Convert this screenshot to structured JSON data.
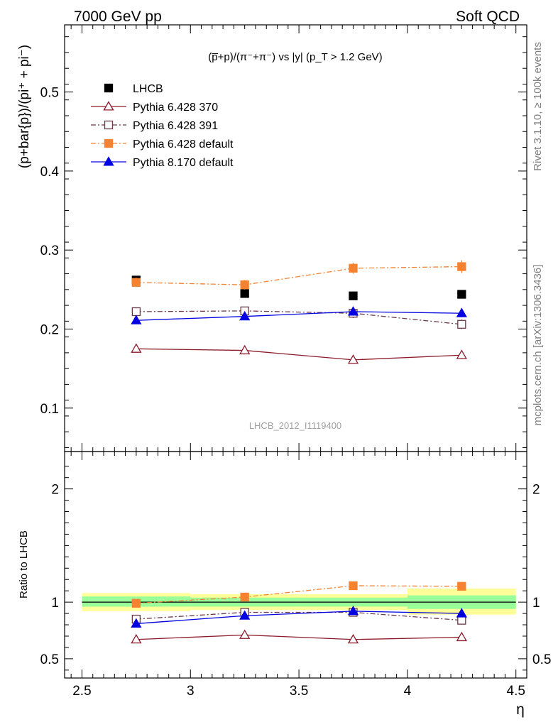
{
  "header": {
    "left": "7000 GeV pp",
    "right": "Soft QCD"
  },
  "side": {
    "top": "Rivet 3.1.10, ≥ 100k events",
    "bottom": "mcplots.cern.ch [arXiv:1306.3436]"
  },
  "chart_data": [
    {
      "type": "scatter",
      "title": "(p̅+p)/(π⁻+π⁻) vs |y| (p_T > 1.2 GeV)",
      "ylabel": "(p+bar{p})/(pi⁺ + pi⁻)",
      "analysis_label": "LHCB_2012_I1119400",
      "xlim": [
        2.42,
        4.55
      ],
      "ylim": [
        0.045,
        0.585
      ],
      "yticks": [
        0.1,
        0.2,
        0.3,
        0.4,
        0.5
      ],
      "ytick_labels": [
        "0.1",
        "0.2",
        "0.3",
        "0.4",
        "0.5"
      ],
      "x": [
        2.75,
        3.25,
        3.75,
        4.25
      ],
      "legend_position": "top-left",
      "series": [
        {
          "name": "LHCB",
          "color": "#000000",
          "marker": "square-filled",
          "line": "none",
          "values": [
            0.262,
            0.245,
            0.242,
            0.244
          ]
        },
        {
          "name": "Pythia 6.428 370",
          "color": "#8b1a2a",
          "marker": "triangle-open",
          "line": "solid",
          "values": [
            0.175,
            0.173,
            0.161,
            0.167
          ],
          "errors": [
            0.003,
            0.003,
            0.003,
            0.005
          ]
        },
        {
          "name": "Pythia 6.428 391",
          "color": "#6b3a4a",
          "marker": "square-open",
          "line": "dashdot",
          "values": [
            0.222,
            0.223,
            0.22,
            0.206
          ],
          "errors": [
            0.003,
            0.004,
            0.006,
            0.006
          ]
        },
        {
          "name": "Pythia 6.428 default",
          "color": "#f58231",
          "marker": "square-filled",
          "line": "dashdot",
          "values": [
            0.259,
            0.256,
            0.277,
            0.279
          ],
          "errors": [
            0.006,
            0.006,
            0.007,
            0.008
          ]
        },
        {
          "name": "Pythia 8.170 default",
          "color": "#0000e0",
          "marker": "triangle-filled",
          "line": "solid",
          "values": [
            0.211,
            0.216,
            0.222,
            0.22
          ],
          "errors": [
            0.003,
            0.003,
            0.005,
            0.005
          ]
        }
      ]
    },
    {
      "type": "scatter",
      "ylabel": "Ratio to LHCB",
      "xlabel": "η",
      "xlim": [
        2.42,
        4.55
      ],
      "ylim": [
        0.33,
        2.33
      ],
      "xticks": [
        2.5,
        3,
        3.5,
        4,
        4.5
      ],
      "xtick_labels": [
        "2.5",
        "3",
        "3.5",
        "4",
        "4.5"
      ],
      "yticks": [
        0.5,
        1,
        2
      ],
      "ytick_labels": [
        "0.5",
        "1",
        "2"
      ],
      "x": [
        2.75,
        3.25,
        3.75,
        4.25
      ],
      "bands": [
        {
          "x0": 2.5,
          "x1": 3.0,
          "yellow": [
            0.92,
            1.08
          ],
          "green": [
            0.96,
            1.05
          ]
        },
        {
          "x0": 3.0,
          "x1": 3.5,
          "yellow": [
            0.93,
            1.07
          ],
          "green": [
            0.96,
            1.04
          ]
        },
        {
          "x0": 3.5,
          "x1": 4.0,
          "yellow": [
            0.93,
            1.07
          ],
          "green": [
            0.96,
            1.04
          ]
        },
        {
          "x0": 4.0,
          "x1": 4.5,
          "yellow": [
            0.89,
            1.12
          ],
          "green": [
            0.94,
            1.06
          ]
        }
      ],
      "series": [
        {
          "name": "Pythia 6.428 370",
          "color": "#8b1a2a",
          "marker": "triangle-open",
          "line": "solid",
          "values": [
            0.67,
            0.71,
            0.67,
            0.69
          ],
          "errors": [
            0.01,
            0.01,
            0.01,
            0.02
          ]
        },
        {
          "name": "Pythia 6.428 391",
          "color": "#6b3a4a",
          "marker": "square-open",
          "line": "dashdot",
          "values": [
            0.85,
            0.91,
            0.91,
            0.84
          ],
          "errors": [
            0.01,
            0.01,
            0.02,
            0.02
          ]
        },
        {
          "name": "Pythia 6.428 default",
          "color": "#f58231",
          "marker": "square-filled",
          "line": "dashdot",
          "values": [
            0.99,
            1.045,
            1.145,
            1.14
          ],
          "errors": [
            0.02,
            0.02,
            0.03,
            0.03
          ]
        },
        {
          "name": "Pythia 8.170 default",
          "color": "#0000e0",
          "marker": "triangle-filled",
          "line": "solid",
          "values": [
            0.81,
            0.88,
            0.92,
            0.9
          ],
          "errors": [
            0.01,
            0.01,
            0.02,
            0.02
          ]
        }
      ]
    }
  ]
}
